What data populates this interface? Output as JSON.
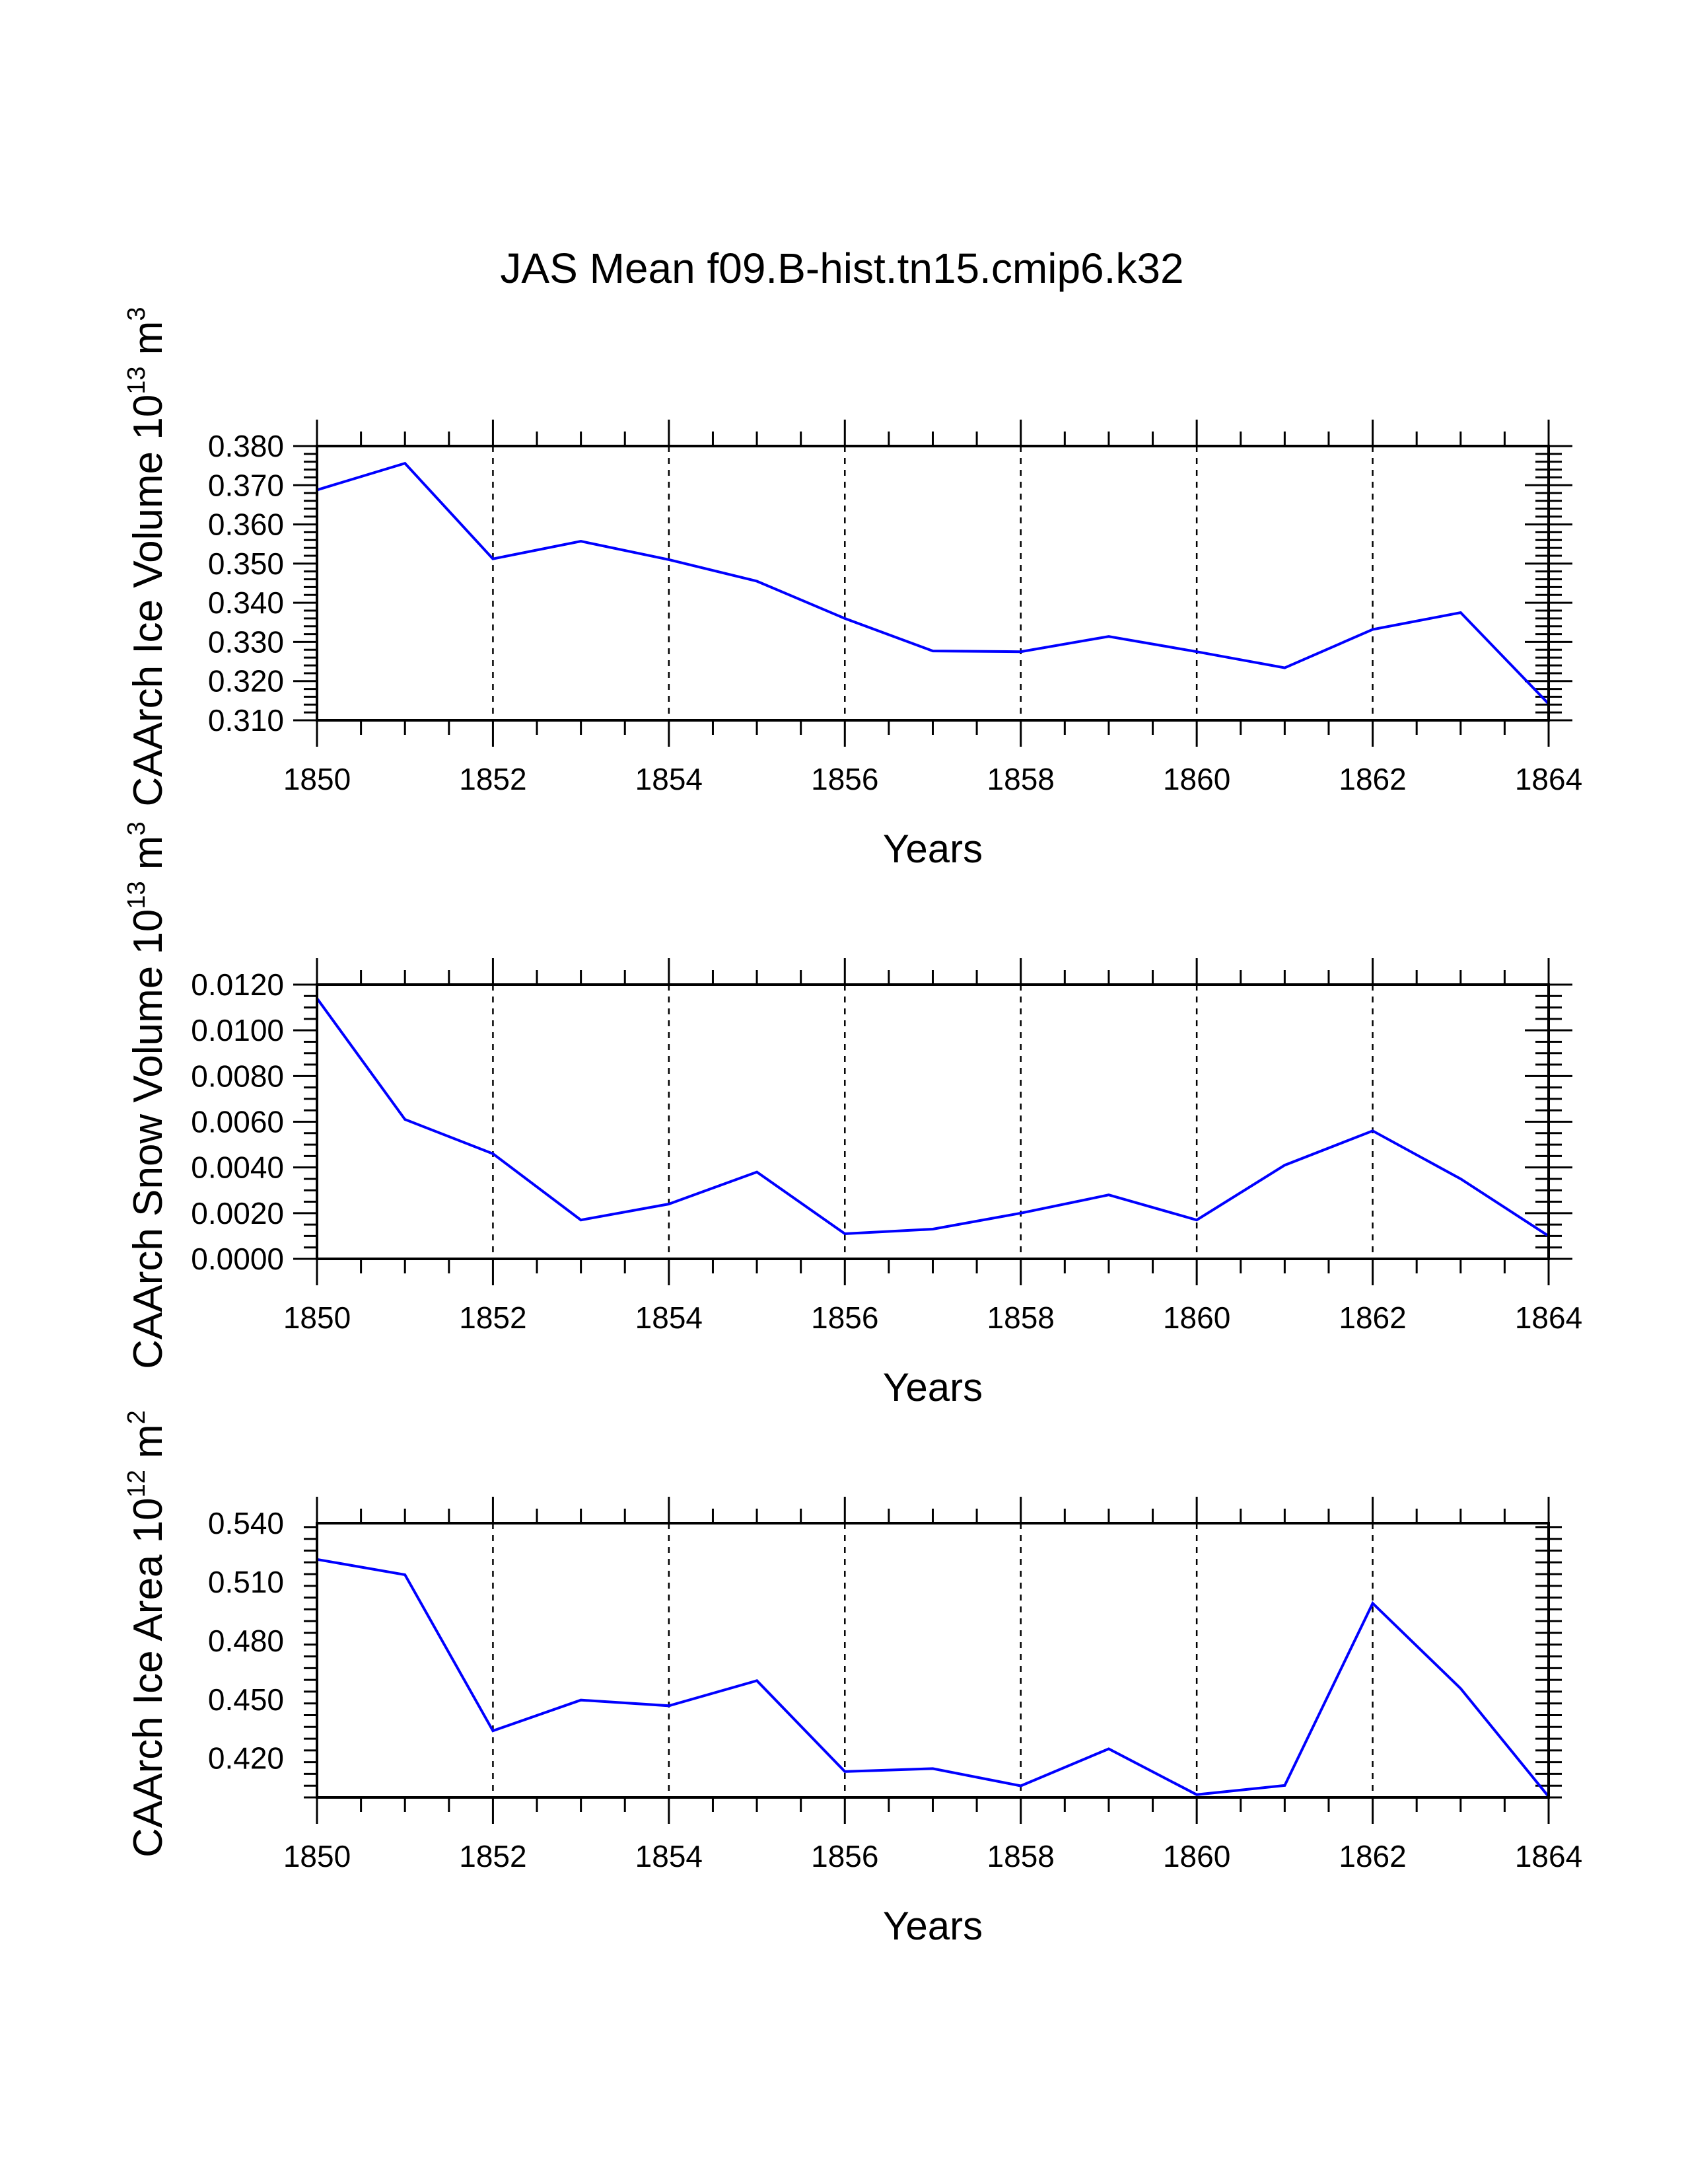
{
  "title": "JAS Mean f09.B-hist.tn15.cmip6.k32",
  "line_color": "#0000ff",
  "chart_data": [
    {
      "type": "line",
      "name": "ice-volume",
      "ylabel": {
        "main": "CAArch Ice Volume 10",
        "sup1": "13",
        "unit": " m",
        "sup2": "3"
      },
      "xlabel": "Years",
      "xlim": [
        1850,
        1864
      ],
      "xticks": [
        "1850",
        "1852",
        "1854",
        "1856",
        "1858",
        "1860",
        "1862",
        "1864"
      ],
      "ylim": [
        0.31,
        0.38
      ],
      "yticks": [
        "0.310",
        "0.320",
        "0.330",
        "0.340",
        "0.350",
        "0.360",
        "0.370",
        "0.380"
      ],
      "grid": "vertical dashed at labeled years",
      "series": [
        {
          "name": "CAArch Ice Volume",
          "x": [
            1850,
            1851,
            1852,
            1853,
            1854,
            1855,
            1856,
            1857,
            1858,
            1859,
            1860,
            1861,
            1862,
            1863,
            1864
          ],
          "values": [
            0.3688,
            0.3756,
            0.3512,
            0.3557,
            0.351,
            0.3455,
            0.336,
            0.3277,
            0.3275,
            0.3314,
            0.3275,
            0.3234,
            0.3332,
            0.3375,
            0.3142
          ]
        }
      ]
    },
    {
      "type": "line",
      "name": "snow-volume",
      "ylabel": {
        "main": "CAArch Snow Volume 10",
        "sup1": "13",
        "unit": " m",
        "sup2": "3"
      },
      "xlabel": "Years",
      "xlim": [
        1850,
        1864
      ],
      "xticks": [
        "1850",
        "1852",
        "1854",
        "1856",
        "1858",
        "1860",
        "1862",
        "1864"
      ],
      "ylim": [
        0.0,
        0.012
      ],
      "yticks": [
        "0.0000",
        "0.0020",
        "0.0040",
        "0.0060",
        "0.0080",
        "0.0100",
        "0.0120"
      ],
      "grid": "vertical dashed at labeled years",
      "series": [
        {
          "name": "CAArch Snow Volume",
          "x": [
            1850,
            1851,
            1852,
            1853,
            1854,
            1855,
            1856,
            1857,
            1858,
            1859,
            1860,
            1861,
            1862,
            1863,
            1864
          ],
          "values": [
            0.0114,
            0.0061,
            0.0046,
            0.0017,
            0.0024,
            0.0038,
            0.0011,
            0.0013,
            0.002,
            0.0028,
            0.0017,
            0.0041,
            0.0056,
            0.0035,
            0.001
          ]
        }
      ]
    },
    {
      "type": "line",
      "name": "ice-area",
      "ylabel": {
        "main": "CAArch Ice Area 10",
        "sup1": "12",
        "unit": " m",
        "sup2": "2"
      },
      "xlabel": "Years",
      "xlim": [
        1850,
        1864
      ],
      "xticks": [
        "1850",
        "1852",
        "1854",
        "1856",
        "1858",
        "1860",
        "1862",
        "1864"
      ],
      "ylim": [
        0.4,
        0.54
      ],
      "yticks": [
        "0.420",
        "0.450",
        "0.480",
        "0.510",
        "0.540"
      ],
      "grid": "vertical dashed at labeled years",
      "series": [
        {
          "name": "CAArch Ice Area",
          "x": [
            1850,
            1851,
            1852,
            1853,
            1854,
            1855,
            1856,
            1857,
            1858,
            1859,
            1860,
            1861,
            1862,
            1863,
            1864
          ],
          "values": [
            0.5215,
            0.5137,
            0.434,
            0.4497,
            0.4468,
            0.4596,
            0.4132,
            0.4147,
            0.4059,
            0.4248,
            0.4014,
            0.4061,
            0.4991,
            0.4556,
            0.4004
          ]
        }
      ]
    }
  ]
}
